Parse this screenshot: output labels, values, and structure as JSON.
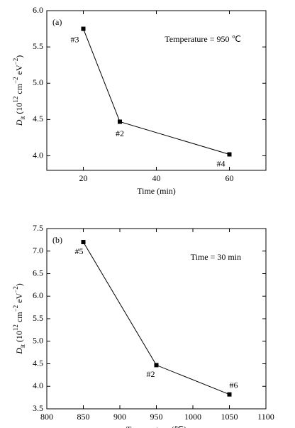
{
  "chart_data": [
    {
      "type": "line",
      "panel_label": "(a)",
      "annotation": "Temperature = 950 ℃",
      "x": [
        20,
        30,
        60
      ],
      "values": [
        5.75,
        4.47,
        4.02
      ],
      "point_labels": [
        "#3",
        "#2",
        "#4"
      ],
      "color": "#000000",
      "xlim": [
        10,
        70
      ],
      "xticks": [
        20,
        40,
        60
      ],
      "ylim": [
        3.8,
        6.0
      ],
      "yticks": [
        {
          "value": 4.0,
          "label": "4.0"
        },
        4.5,
        {
          "value": 5.0,
          "label": "5.0"
        },
        5.5,
        {
          "value": 6.0,
          "label": "6.0"
        }
      ],
      "xlabel": "Time (min)",
      "ylabel": [
        "D",
        "it",
        " (10",
        "12",
        " cm",
        "−2",
        " eV",
        "−2",
        ")"
      ]
    },
    {
      "type": "line",
      "panel_label": "(b)",
      "annotation": "Time = 30 min",
      "x": [
        850,
        950,
        1050
      ],
      "values": [
        7.2,
        4.47,
        3.82
      ],
      "point_labels": [
        "#5",
        "#2",
        "#6"
      ],
      "color": "#000000",
      "xlim": [
        800,
        1100
      ],
      "xticks": [
        800,
        850,
        900,
        950,
        1000,
        1050,
        1100
      ],
      "ylim": [
        3.5,
        7.5
      ],
      "yticks": [
        3.5,
        {
          "value": 4.0,
          "label": "4.0"
        },
        4.5,
        {
          "value": 5.0,
          "label": "5.0"
        },
        5.5,
        {
          "value": 6.0,
          "label": "6.0"
        },
        6.5,
        {
          "value": 7.0,
          "label": "7.0"
        },
        7.5
      ],
      "xlabel": "Temperature (℃)",
      "ylabel": [
        "D",
        "it",
        " (10",
        "12",
        " cm",
        "−2",
        " eV",
        "−2",
        ")"
      ]
    }
  ]
}
